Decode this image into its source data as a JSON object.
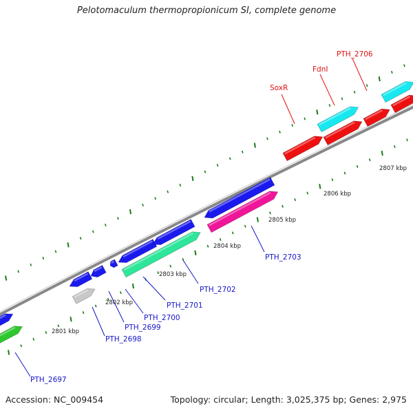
{
  "title": "Pelotomaculum thermopropionicum SI, complete genome",
  "accession_text": "Accession: NC_009454",
  "topology_text": "Topology: circular; Length: 3,025,375 bp; Genes: 2,975",
  "kbp_labels": [
    "2801 kbp",
    "2802 kbp",
    "2803 kbp",
    "2804 kbp",
    "2805 kbp",
    "2806 kbp",
    "2807 kbp"
  ],
  "genes": [
    {
      "id": "PTH_2697",
      "color": "#1a1aee",
      "label_color": "#1515c8"
    },
    {
      "id": "PTH_2698",
      "color": "#c8c8c8",
      "label_color": "#1515c8"
    },
    {
      "id": "PTH_2699",
      "color": "#1a1aee",
      "label_color": "#1515c8"
    },
    {
      "id": "PTH_2700",
      "color": "#1a1aee",
      "label_color": "#1515c8"
    },
    {
      "id": "PTH_2701",
      "color": "#1a1aee",
      "label_color": "#1515c8"
    },
    {
      "id": "PTH_2702",
      "color": "#2ee69a",
      "label_color": "#1515c8"
    },
    {
      "id": "PTH_2703",
      "color": "#f0169a",
      "label_color": "#1515c8"
    },
    {
      "id": "SoxR",
      "color": "#ee1010",
      "label_color": "#dd1111"
    },
    {
      "id": "FdnI",
      "color": "#ee1010",
      "label_color": "#dd1111"
    },
    {
      "id": "PTH_2706",
      "color": "#ee1010",
      "label_color": "#dd1111"
    }
  ],
  "colors": {
    "backbone": "#888888",
    "tick": "#1a7a1a",
    "green_gene": "#2ec82e",
    "cyan_gene": "#18e8f0"
  }
}
